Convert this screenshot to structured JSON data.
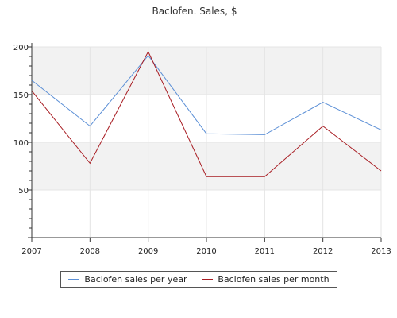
{
  "chart_data": {
    "type": "line",
    "title": "Baclofen. Sales, $",
    "xlabel": "",
    "ylabel": "",
    "x": [
      "2007",
      "2008",
      "2009",
      "2010",
      "2011",
      "2012",
      "2013"
    ],
    "ylim": [
      0,
      200
    ],
    "yticks": [
      50,
      100,
      150,
      200
    ],
    "grid": true,
    "legend_position": "bottom",
    "series": [
      {
        "name": "Baclofen sales per year",
        "color": "#5b8fd6",
        "values": [
          165,
          117,
          191,
          109,
          108,
          142,
          113
        ]
      },
      {
        "name": "Baclofen sales per month",
        "color": "#a81c22",
        "values": [
          154,
          78,
          195,
          64,
          64,
          117,
          70
        ]
      }
    ]
  }
}
